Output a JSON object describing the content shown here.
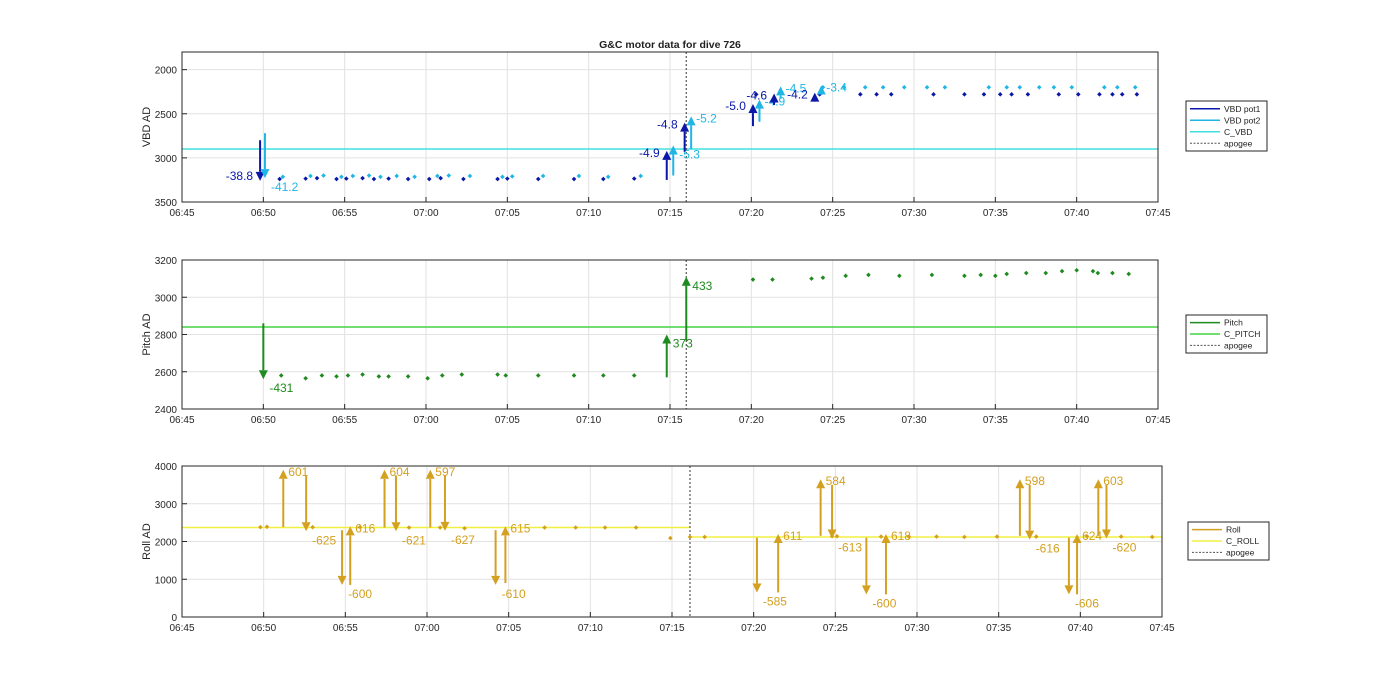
{
  "figure_title": "G&C motor data for dive 726",
  "colors": {
    "vbd_pot1": "#0a17a8",
    "vbd_pot2": "#1fb6e6",
    "c_vbd": "#40e0e0",
    "pitch": "#1f8a1f",
    "c_pitch": "#44d444",
    "roll": "#d4a020",
    "c_roll": "#f0f040",
    "apogee": "#555555",
    "grid": "#e2e2e2",
    "axis": "#262626"
  },
  "chart_data": [
    {
      "type": "scatter",
      "id": "vbd",
      "title": "G&C motor data for dive 726",
      "ylabel": "VBD AD",
      "xlabel": "",
      "x_ticks": [
        "06:45",
        "06:50",
        "06:55",
        "07:00",
        "07:05",
        "07:10",
        "07:15",
        "07:20",
        "07:25",
        "07:30",
        "07:35",
        "07:40",
        "07:45"
      ],
      "x_range_min": [
        405,
        465
      ],
      "y_ticks": [
        2000,
        2500,
        3000,
        3500
      ],
      "ylim": [
        1800,
        3500
      ],
      "y_reversed": true,
      "grid": true,
      "legend": {
        "position": "outside-right",
        "entries": [
          "VBD pot1",
          "VBD pot2",
          "C_VBD",
          "apogee"
        ]
      },
      "reference_line": {
        "name": "C_VBD",
        "y": 2900
      },
      "apogee_x": 436,
      "series": [
        {
          "name": "VBD pot1",
          "x": [
            411,
            412.6,
            413.3,
            414.5,
            415.1,
            416.1,
            416.8,
            417.7,
            418.9,
            420.2,
            420.9,
            422.3,
            424.4,
            425,
            426.9,
            429.1,
            430.9,
            432.8,
            462.2,
            462.8,
            463.7
          ],
          "y": [
            3240,
            3235,
            3230,
            3240,
            3235,
            3230,
            3240,
            3235,
            3240,
            3240,
            3230,
            3240,
            3240,
            3235,
            3240,
            3240,
            3240,
            3235,
            2280,
            2280,
            2280
          ]
        },
        {
          "name": "VBD pot1 (late)",
          "x": [
            440.3,
            444.2,
            446.7,
            447.7,
            448.6,
            451.2,
            453.1,
            454.3,
            455.3,
            456,
            457,
            458.9,
            460.1,
            461.4
          ],
          "y": [
            2280,
            2280,
            2280,
            2280,
            2280,
            2280,
            2280,
            2280,
            2280,
            2280,
            2280,
            2280,
            2280,
            2280
          ]
        },
        {
          "name": "VBD pot2",
          "x": [
            411.2,
            412.9,
            413.7,
            414.8,
            415.5,
            416.5,
            417.2,
            418.2,
            419.3,
            420.7,
            421.4,
            422.7,
            424.7,
            425.3,
            427.2,
            429.4,
            431.2,
            433.2
          ],
          "y": [
            3215,
            3205,
            3200,
            3215,
            3205,
            3200,
            3215,
            3205,
            3215,
            3205,
            3200,
            3205,
            3215,
            3210,
            3205,
            3205,
            3215,
            3205
          ]
        },
        {
          "name": "VBD pot2 (late)",
          "x": [
            444.4,
            445.7,
            447,
            448.1,
            449.4,
            450.8,
            451.9,
            454.6,
            455.7,
            456.5,
            457.7,
            458.6,
            459.7,
            461.7,
            462.5,
            463.6
          ],
          "y": [
            2200,
            2200,
            2200,
            2200,
            2200,
            2200,
            2200,
            2200,
            2200,
            2200,
            2200,
            2200,
            2200,
            2200,
            2200,
            2200
          ]
        }
      ],
      "arrows": [
        {
          "series": "VBD pot1",
          "x": 409.8,
          "from": 2800,
          "to": 3260,
          "label": "-38.8",
          "label_side": "left"
        },
        {
          "series": "VBD pot2",
          "x": 410.1,
          "from": 2720,
          "to": 3230,
          "label": "-41.2",
          "label_side": "below-right"
        },
        {
          "series": "VBD pot1",
          "x": 434.8,
          "from": 3250,
          "to": 2920,
          "label": "-4.9",
          "label_side": "left"
        },
        {
          "series": "VBD pot2",
          "x": 435.2,
          "from": 3200,
          "to": 2860,
          "label": "-5.3",
          "label_side": "below-right"
        },
        {
          "series": "VBD pot1",
          "x": 435.9,
          "from": 2930,
          "to": 2600,
          "label": "-4.8",
          "label_side": "left"
        },
        {
          "series": "VBD pot2",
          "x": 436.3,
          "from": 2900,
          "to": 2530,
          "label": "-5.2",
          "label_side": "right"
        },
        {
          "series": "VBD pot1",
          "x": 440.1,
          "from": 2640,
          "to": 2390,
          "label": "-5.0",
          "label_side": "left"
        },
        {
          "series": "VBD pot2",
          "x": 440.5,
          "from": 2590,
          "to": 2340,
          "label": "-4.9",
          "label_side": "right"
        },
        {
          "series": "VBD pot1",
          "x": 441.4,
          "from": 2400,
          "to": 2270,
          "label": "-4.6",
          "label_side": "left"
        },
        {
          "series": "VBD pot2",
          "x": 441.8,
          "from": 2330,
          "to": 2190,
          "label": "-4.5",
          "label_side": "right"
        },
        {
          "series": "VBD pot1",
          "x": 443.9,
          "from": 2300,
          "to": 2260,
          "label": "-4.2",
          "label_side": "left"
        },
        {
          "series": "VBD pot2",
          "x": 444.3,
          "from": 2250,
          "to": 2180,
          "label": "-3.4",
          "label_side": "right"
        }
      ]
    },
    {
      "type": "scatter",
      "id": "pitch",
      "ylabel": "Pitch AD",
      "xlabel": "",
      "x_ticks": [
        "06:45",
        "06:50",
        "06:55",
        "07:00",
        "07:05",
        "07:10",
        "07:15",
        "07:20",
        "07:25",
        "07:30",
        "07:35",
        "07:40",
        "07:45"
      ],
      "x_range_min": [
        405,
        465
      ],
      "y_ticks": [
        2400,
        2600,
        2800,
        3000,
        3200
      ],
      "ylim": [
        2400,
        3200
      ],
      "grid": true,
      "legend": {
        "position": "outside-right",
        "entries": [
          "Pitch",
          "C_PITCH",
          "apogee"
        ]
      },
      "reference_line": {
        "name": "C_PITCH",
        "y": 2840
      },
      "apogee_x": 436,
      "series": [
        {
          "name": "Pitch",
          "x": [
            411.1,
            412.6,
            413.6,
            414.5,
            415.2,
            416.1,
            417.1,
            417.7,
            418.9,
            420.1,
            421,
            422.2,
            424.4,
            424.9,
            426.9,
            429.1,
            430.9,
            432.8,
            440.1,
            441.3,
            443.7,
            444.4,
            445.8,
            447.2,
            449.1,
            451.1,
            453.1,
            454.1,
            455,
            455.7,
            456.9,
            458.1,
            459.1,
            460,
            461,
            461.3,
            462.2,
            463.2
          ],
          "y": [
            2580,
            2565,
            2580,
            2575,
            2580,
            2585,
            2575,
            2575,
            2575,
            2565,
            2580,
            2585,
            2585,
            2580,
            2580,
            2580,
            2580,
            2580,
            3095,
            3095,
            3100,
            3105,
            3115,
            3120,
            3115,
            3120,
            3115,
            3120,
            3115,
            3125,
            3130,
            3130,
            3140,
            3145,
            3140,
            3130,
            3130,
            3125
          ]
        }
      ],
      "arrows": [
        {
          "series": "Pitch",
          "x": 410,
          "from": 2860,
          "to": 2560,
          "label": "-431",
          "label_side": "below-right"
        },
        {
          "series": "Pitch",
          "x": 434.8,
          "from": 2570,
          "to": 2800,
          "label": "373",
          "label_side": "below-right"
        },
        {
          "series": "Pitch",
          "x": 436,
          "from": 2770,
          "to": 3110,
          "label": "433",
          "label_side": "below-right"
        }
      ]
    },
    {
      "type": "scatter",
      "id": "roll",
      "ylabel": "Roll AD",
      "xlabel": "",
      "x_ticks": [
        "06:45",
        "06:50",
        "06:55",
        "07:00",
        "07:05",
        "07:10",
        "07:15",
        "07:20",
        "07:25",
        "07:30",
        "07:35",
        "07:40",
        "07:45"
      ],
      "x_range_min": [
        405,
        465
      ],
      "y_ticks": [
        0,
        1000,
        2000,
        3000,
        4000
      ],
      "ylim": [
        0,
        4000
      ],
      "grid": true,
      "legend": {
        "position": "outside-right",
        "entries": [
          "Roll",
          "C_ROLL",
          "apogee"
        ]
      },
      "apogee_x": 436.1,
      "reference_segments": [
        {
          "name": "C_ROLL",
          "x0": 405,
          "x1": 436.1,
          "y": 2370
        },
        {
          "name": "C_ROLL",
          "x0": 436.1,
          "x1": 465,
          "y": 2120
        }
      ],
      "series": [
        {
          "name": "Roll",
          "x": [
            409.8,
            410.2,
            413,
            415.9,
            418.9,
            420.8,
            422.3,
            427.2,
            429.1,
            430.9,
            432.8,
            434.9,
            436.1,
            437,
            444.8,
            445.1,
            447.8,
            449.5,
            451.2,
            452.9,
            454.9,
            457.3,
            460.4,
            462.5,
            464.4
          ],
          "y": [
            2380,
            2390,
            2380,
            2380,
            2370,
            2370,
            2350,
            2370,
            2370,
            2370,
            2370,
            2090,
            2120,
            2120,
            2140,
            2140,
            2130,
            2130,
            2130,
            2120,
            2130,
            2130,
            2140,
            2130,
            2120
          ]
        }
      ],
      "arrows": [
        {
          "series": "Roll",
          "x": 411.2,
          "from": 2380,
          "to": 3900,
          "label": "601",
          "label_side": "right"
        },
        {
          "series": "Roll",
          "x": 412.6,
          "from": 3750,
          "to": 2270,
          "label": "-625",
          "label_side": "below-right"
        },
        {
          "series": "Roll",
          "x": 414.8,
          "from": 2300,
          "to": 850,
          "label": "-600",
          "label_side": "below-right"
        },
        {
          "series": "Roll",
          "x": 415.3,
          "from": 850,
          "to": 2400,
          "label": "616",
          "label_side": "right"
        },
        {
          "series": "Roll",
          "x": 417.4,
          "from": 2370,
          "to": 3900,
          "label": "604",
          "label_side": "right"
        },
        {
          "series": "Roll",
          "x": 418.1,
          "from": 3750,
          "to": 2270,
          "label": "-621",
          "label_side": "below-right"
        },
        {
          "series": "Roll",
          "x": 420.2,
          "from": 2370,
          "to": 3900,
          "label": "597",
          "label_side": "right"
        },
        {
          "series": "Roll",
          "x": 421.1,
          "from": 3750,
          "to": 2280,
          "label": "-627",
          "label_side": "below-right"
        },
        {
          "series": "Roll",
          "x": 424.2,
          "from": 2300,
          "to": 850,
          "label": "-610",
          "label_side": "below-right"
        },
        {
          "series": "Roll",
          "x": 424.8,
          "from": 900,
          "to": 2400,
          "label": "615",
          "label_side": "right"
        },
        {
          "series": "Roll",
          "x": 440.2,
          "from": 2100,
          "to": 650,
          "label": "-585",
          "label_side": "below-right"
        },
        {
          "series": "Roll",
          "x": 441.5,
          "from": 650,
          "to": 2200,
          "label": "611",
          "label_side": "right"
        },
        {
          "series": "Roll",
          "x": 444.1,
          "from": 2150,
          "to": 3650,
          "label": "584",
          "label_side": "right"
        },
        {
          "series": "Roll",
          "x": 444.8,
          "from": 3500,
          "to": 2080,
          "label": "-613",
          "label_side": "below-right"
        },
        {
          "series": "Roll",
          "x": 446.9,
          "from": 2100,
          "to": 600,
          "label": "-600",
          "label_side": "below-right"
        },
        {
          "series": "Roll",
          "x": 448.1,
          "from": 600,
          "to": 2200,
          "label": "618",
          "label_side": "right"
        },
        {
          "series": "Roll",
          "x": 456.3,
          "from": 2150,
          "to": 3650,
          "label": "598",
          "label_side": "right"
        },
        {
          "series": "Roll",
          "x": 456.9,
          "from": 3500,
          "to": 2050,
          "label": "-616",
          "label_side": "below-right"
        },
        {
          "series": "Roll",
          "x": 459.3,
          "from": 2100,
          "to": 600,
          "label": "-606",
          "label_side": "below-right"
        },
        {
          "series": "Roll",
          "x": 459.8,
          "from": 600,
          "to": 2200,
          "label": "624",
          "label_side": "right"
        },
        {
          "series": "Roll",
          "x": 461.1,
          "from": 2150,
          "to": 3650,
          "label": "603",
          "label_side": "right"
        },
        {
          "series": "Roll",
          "x": 461.6,
          "from": 3500,
          "to": 2080,
          "label": "-620",
          "label_side": "below-right"
        }
      ]
    }
  ]
}
